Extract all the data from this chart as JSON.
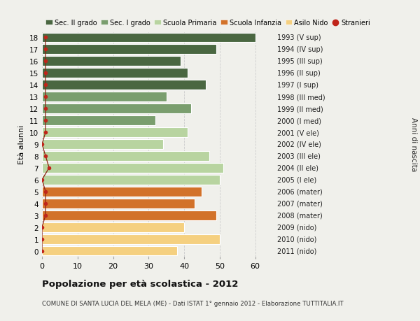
{
  "ages": [
    0,
    1,
    2,
    3,
    4,
    5,
    6,
    7,
    8,
    9,
    10,
    11,
    12,
    13,
    14,
    15,
    16,
    17,
    18
  ],
  "values": [
    38,
    50,
    40,
    49,
    43,
    45,
    50,
    51,
    47,
    34,
    41,
    32,
    42,
    35,
    46,
    41,
    39,
    49,
    60
  ],
  "stranieri": [
    0,
    0,
    0,
    1,
    1,
    1,
    0,
    2,
    1,
    0,
    1,
    1,
    1,
    1,
    1,
    1,
    1,
    1,
    1
  ],
  "right_labels": [
    "2011 (nido)",
    "2010 (nido)",
    "2009 (nido)",
    "2008 (mater)",
    "2007 (mater)",
    "2006 (mater)",
    "2005 (I ele)",
    "2004 (II ele)",
    "2003 (III ele)",
    "2002 (IV ele)",
    "2001 (V ele)",
    "2000 (I med)",
    "1999 (II med)",
    "1998 (III med)",
    "1997 (I sup)",
    "1996 (II sup)",
    "1995 (III sup)",
    "1994 (IV sup)",
    "1993 (V sup)"
  ],
  "bar_colors": [
    "#f5d080",
    "#f5d080",
    "#f5d080",
    "#d2722a",
    "#d2722a",
    "#d2722a",
    "#b8d4a0",
    "#b8d4a0",
    "#b8d4a0",
    "#b8d4a0",
    "#b8d4a0",
    "#7a9e6e",
    "#7a9e6e",
    "#7a9e6e",
    "#4a6741",
    "#4a6741",
    "#4a6741",
    "#4a6741",
    "#4a6741"
  ],
  "legend_labels": [
    "Sec. II grado",
    "Sec. I grado",
    "Scuola Primaria",
    "Scuola Infanzia",
    "Asilo Nido",
    "Stranieri"
  ],
  "legend_colors": [
    "#4a6741",
    "#7a9e6e",
    "#b8d4a0",
    "#d2722a",
    "#f5d080",
    "#c0251a"
  ],
  "title": "Popolazione per età scolastica - 2012",
  "subtitle": "COMUNE DI SANTA LUCIA DEL MELA (ME) - Dati ISTAT 1° gennaio 2012 - Elaborazione TUTTITALIA.IT",
  "ylabel": "Età alunni",
  "right_ylabel": "Anni di nascita",
  "stranieri_line_color": "#8b2010",
  "stranieri_dot_color": "#c0251a",
  "xlim": [
    0,
    65
  ],
  "xticks": [
    0,
    10,
    20,
    30,
    40,
    50,
    60
  ],
  "bg_color": "#f0f0eb",
  "grid_color": "#cccccc",
  "bar_height": 0.82
}
